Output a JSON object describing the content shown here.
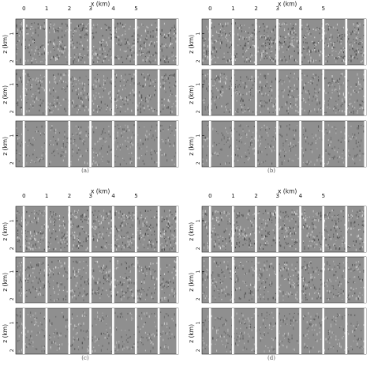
{
  "x_axis": {
    "label": "x (km)",
    "ticks": [
      "0",
      "1",
      "2",
      "3",
      "4",
      "5"
    ]
  },
  "z_axis": {
    "label": "z (km)",
    "ticks": [
      "1",
      "2"
    ]
  },
  "subfigures": [
    {
      "caption": "(a)"
    },
    {
      "caption": "(b)"
    },
    {
      "caption": "(c)"
    },
    {
      "caption": "(d)"
    }
  ],
  "colors": {
    "background": "#ffffff",
    "panel_base": "#8f8f8f",
    "trace_light": "#e6e6e6",
    "trace_dark": "#3a3a3a",
    "gap_white": "#ffffff",
    "axis_text": "#111111",
    "caption_text": "#555555"
  }
}
